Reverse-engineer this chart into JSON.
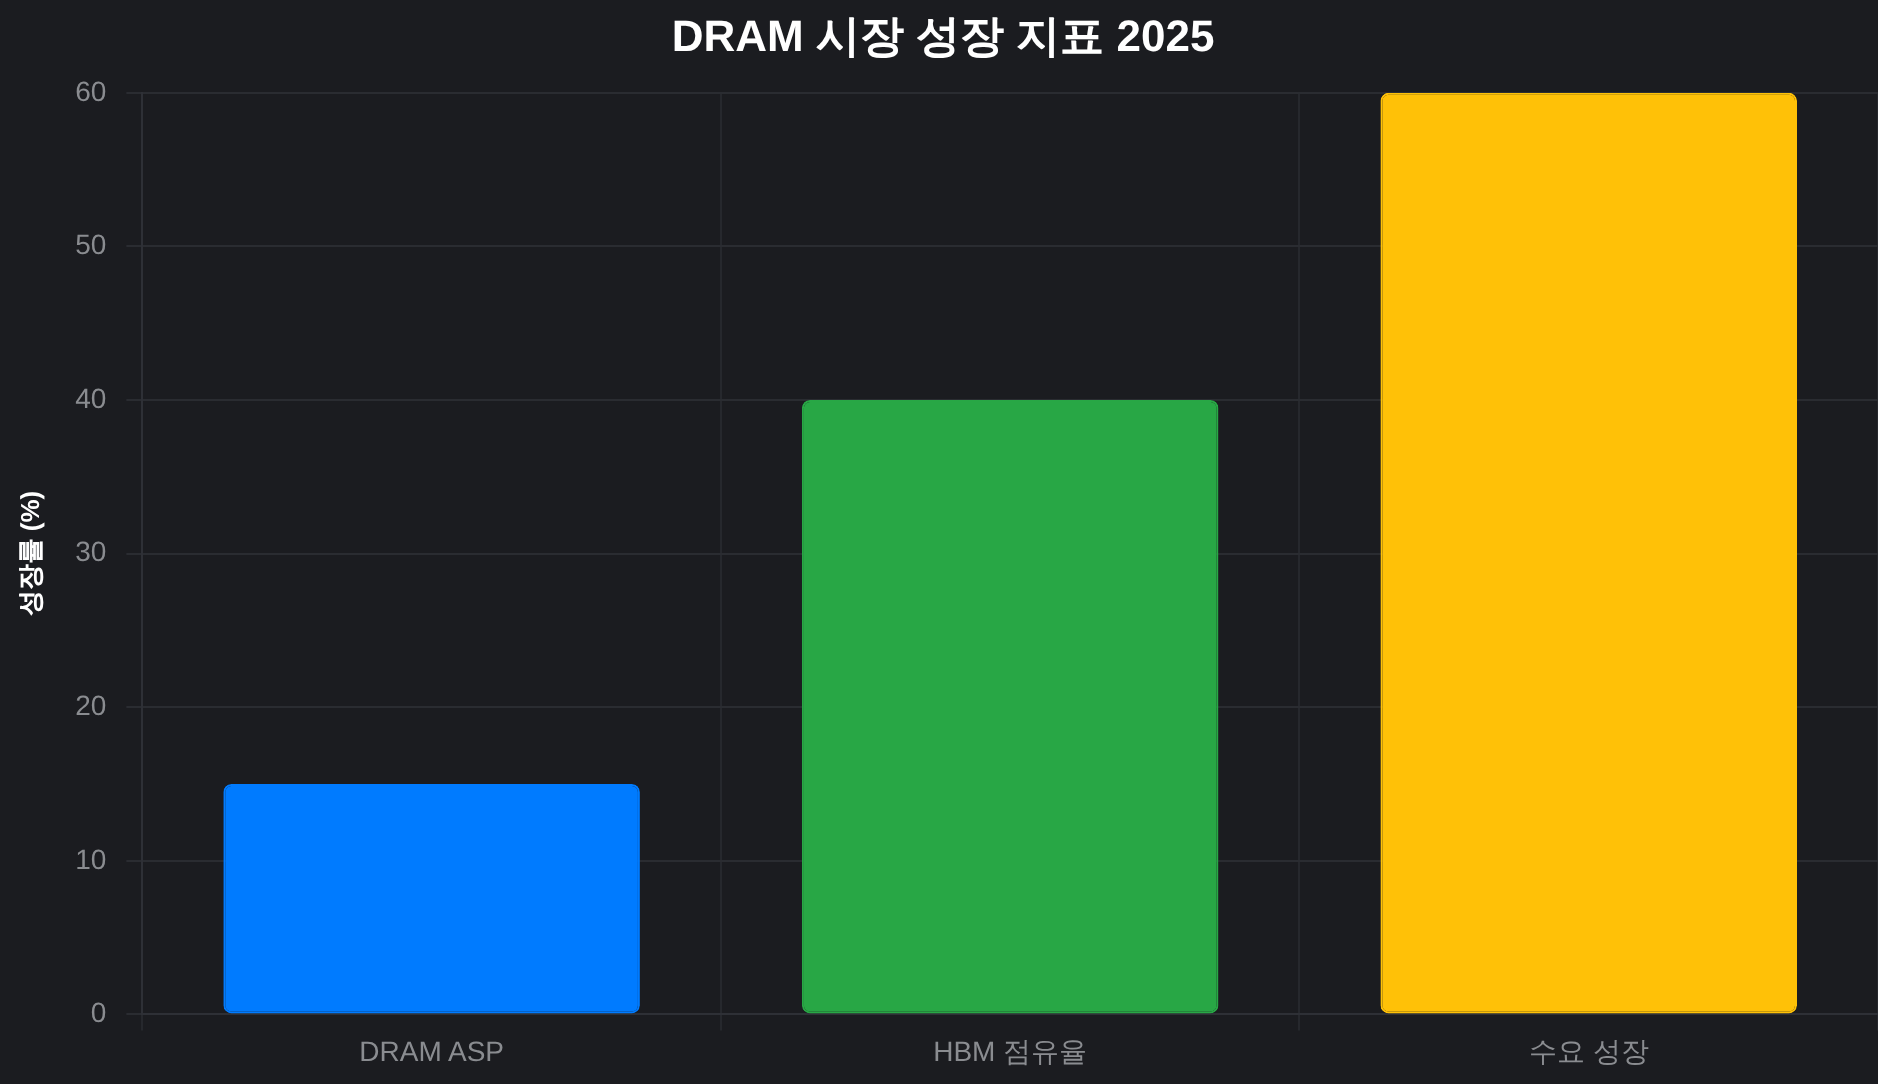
{
  "chart_data": {
    "type": "bar",
    "title": "DRAM 시장 성장 지표 2025",
    "ylabel": "성장률 (%)",
    "categories": [
      "DRAM ASP",
      "HBM 점유율",
      "수요 성장"
    ],
    "values": [
      15,
      40,
      60
    ],
    "colors": [
      "#007bff",
      "#28a745",
      "#ffc107"
    ],
    "ylim": [
      0,
      60
    ],
    "yticks": [
      0,
      10,
      20,
      30,
      40,
      50,
      60
    ],
    "grid": true
  }
}
